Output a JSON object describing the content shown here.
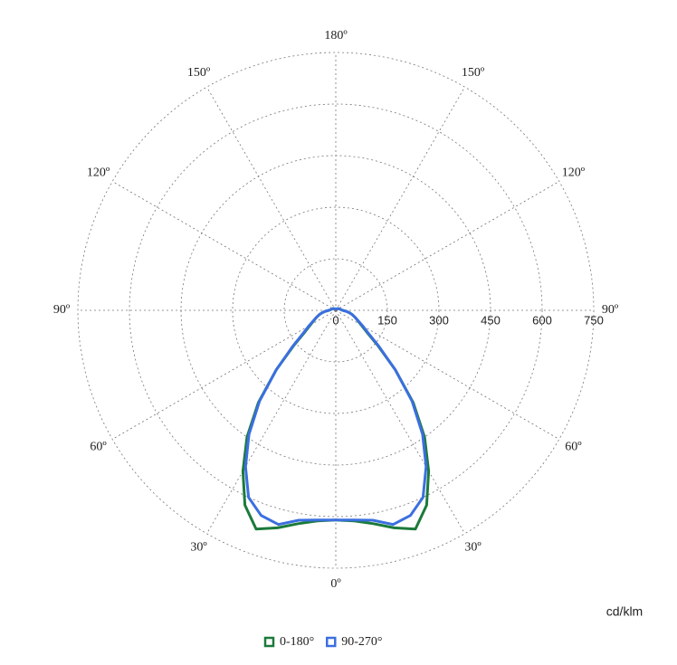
{
  "chart_data": {
    "type": "polar",
    "x": [
      0,
      5,
      10,
      15,
      20,
      25,
      30,
      35,
      40,
      45,
      50,
      55,
      60,
      65,
      70,
      75,
      80,
      85,
      90,
      120,
      150,
      180
    ],
    "series": [
      {
        "name": "0-180°",
        "color": "#1b7a3b",
        "values": [
          610,
          615,
          630,
          655,
          677,
          625,
          540,
          450,
          350,
          245,
          160,
          110,
          85,
          70,
          60,
          50,
          40,
          30,
          20,
          10,
          5,
          5
        ]
      },
      {
        "name": "90-270°",
        "color": "#3b6fe0",
        "values": [
          610,
          612,
          620,
          645,
          635,
          600,
          525,
          440,
          345,
          245,
          165,
          115,
          90,
          72,
          60,
          50,
          40,
          30,
          20,
          10,
          5,
          5
        ]
      }
    ],
    "xticks": [
      {
        "value": 0,
        "label": "0º"
      },
      {
        "value": 30,
        "label": "30º"
      },
      {
        "value": 60,
        "label": "60º"
      },
      {
        "value": 90,
        "label": "90º"
      },
      {
        "value": 120,
        "label": "120º"
      },
      {
        "value": 150,
        "label": "150º"
      },
      {
        "value": 180,
        "label": "180º"
      }
    ],
    "ylim": [
      0,
      750
    ],
    "yticks": [
      0,
      150,
      300,
      450,
      600,
      750
    ],
    "y_label": "cd/klm",
    "grid": true
  }
}
